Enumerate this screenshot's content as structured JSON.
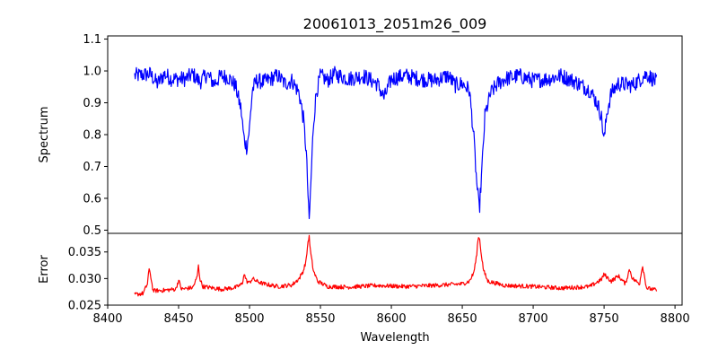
{
  "chart_data": [
    {
      "type": "line",
      "title": "20061013_2051m26_009",
      "xlabel": "",
      "ylabel": "Spectrum",
      "xlim": [
        8400,
        8805
      ],
      "ylim": [
        0.49,
        1.11
      ],
      "xticks": [],
      "yticks": [
        0.5,
        0.6,
        0.7,
        0.8,
        0.9,
        1.0,
        1.1
      ],
      "ytick_labels": [
        "0.5",
        "0.6",
        "0.7",
        "0.8",
        "0.9",
        "1.0",
        "1.1"
      ],
      "grid": false,
      "series": [
        {
          "color": "#0000ff",
          "noise": 0.025,
          "x": [
            8419,
            8430,
            8435,
            8440,
            8445,
            8455,
            8460,
            8465,
            8470,
            8475,
            8480,
            8485,
            8490,
            8494,
            8496,
            8498,
            8500,
            8502,
            8505,
            8510,
            8515,
            8520,
            8525,
            8530,
            8535,
            8538,
            8540,
            8541,
            8542,
            8543,
            8545,
            8547,
            8550,
            8555,
            8560,
            8570,
            8580,
            8590,
            8595,
            8600,
            8610,
            8620,
            8630,
            8640,
            8645,
            8650,
            8655,
            8658,
            8660,
            8662,
            8664,
            8666,
            8670,
            8675,
            8680,
            8690,
            8700,
            8710,
            8720,
            8730,
            8740,
            8745,
            8748,
            8750,
            8752,
            8755,
            8760,
            8770,
            8780,
            8787
          ],
          "y": [
            0.985,
            0.99,
            0.96,
            0.99,
            0.975,
            0.975,
            0.99,
            0.965,
            0.99,
            0.96,
            0.985,
            0.98,
            0.955,
            0.88,
            0.79,
            0.76,
            0.82,
            0.94,
            0.97,
            0.965,
            0.975,
            0.985,
            0.96,
            0.97,
            0.93,
            0.85,
            0.745,
            0.64,
            0.52,
            0.62,
            0.83,
            0.93,
            0.985,
            0.97,
            0.99,
            0.975,
            0.985,
            0.96,
            0.915,
            0.975,
            0.985,
            0.975,
            0.97,
            0.985,
            0.955,
            0.96,
            0.94,
            0.8,
            0.66,
            0.56,
            0.7,
            0.86,
            0.93,
            0.96,
            0.975,
            0.985,
            0.97,
            0.975,
            0.985,
            0.965,
            0.94,
            0.9,
            0.86,
            0.78,
            0.87,
            0.93,
            0.96,
            0.955,
            0.99,
            0.965
          ]
        }
      ]
    },
    {
      "type": "line",
      "title": "",
      "xlabel": "Wavelength",
      "ylabel": "Error",
      "xlim": [
        8400,
        8805
      ],
      "ylim": [
        0.025,
        0.0385
      ],
      "xticks": [
        8400,
        8450,
        8500,
        8550,
        8600,
        8650,
        8700,
        8750,
        8800
      ],
      "xtick_labels": [
        "8400",
        "8450",
        "8500",
        "8550",
        "8600",
        "8650",
        "8700",
        "8750",
        "8800"
      ],
      "yticks": [
        0.025,
        0.03,
        0.035
      ],
      "ytick_labels": [
        "0.025",
        "0.030",
        "0.035"
      ],
      "grid": false,
      "series": [
        {
          "color": "#ff0000",
          "noise": 0.0004,
          "x": [
            8419,
            8425,
            8428,
            8429,
            8430,
            8432,
            8440,
            8448,
            8450,
            8452,
            8460,
            8463,
            8464,
            8465,
            8467,
            8480,
            8490,
            8495,
            8496,
            8498,
            8500,
            8502,
            8505,
            8510,
            8520,
            8530,
            8535,
            8538,
            8540,
            8541,
            8542,
            8543,
            8545,
            8548,
            8555,
            8570,
            8590,
            8610,
            8630,
            8650,
            8655,
            8658,
            8660,
            8661,
            8662,
            8663,
            8665,
            8668,
            8680,
            8700,
            8720,
            8740,
            8748,
            8750,
            8755,
            8760,
            8765,
            8768,
            8770,
            8775,
            8777,
            8780,
            8787
          ],
          "y": [
            0.027,
            0.0272,
            0.029,
            0.0316,
            0.031,
            0.0277,
            0.0278,
            0.028,
            0.0297,
            0.028,
            0.0283,
            0.0302,
            0.0324,
            0.03,
            0.0285,
            0.028,
            0.0283,
            0.029,
            0.031,
            0.0295,
            0.0292,
            0.03,
            0.0295,
            0.029,
            0.0285,
            0.0288,
            0.03,
            0.0315,
            0.0335,
            0.0365,
            0.038,
            0.035,
            0.0315,
            0.0295,
            0.0285,
            0.0284,
            0.0287,
            0.0285,
            0.0287,
            0.029,
            0.0295,
            0.031,
            0.034,
            0.0372,
            0.038,
            0.0355,
            0.0315,
            0.0295,
            0.0287,
            0.0285,
            0.0282,
            0.0285,
            0.0298,
            0.0308,
            0.0295,
            0.0305,
            0.029,
            0.0318,
            0.03,
            0.029,
            0.0325,
            0.0282,
            0.0278
          ]
        }
      ]
    }
  ]
}
